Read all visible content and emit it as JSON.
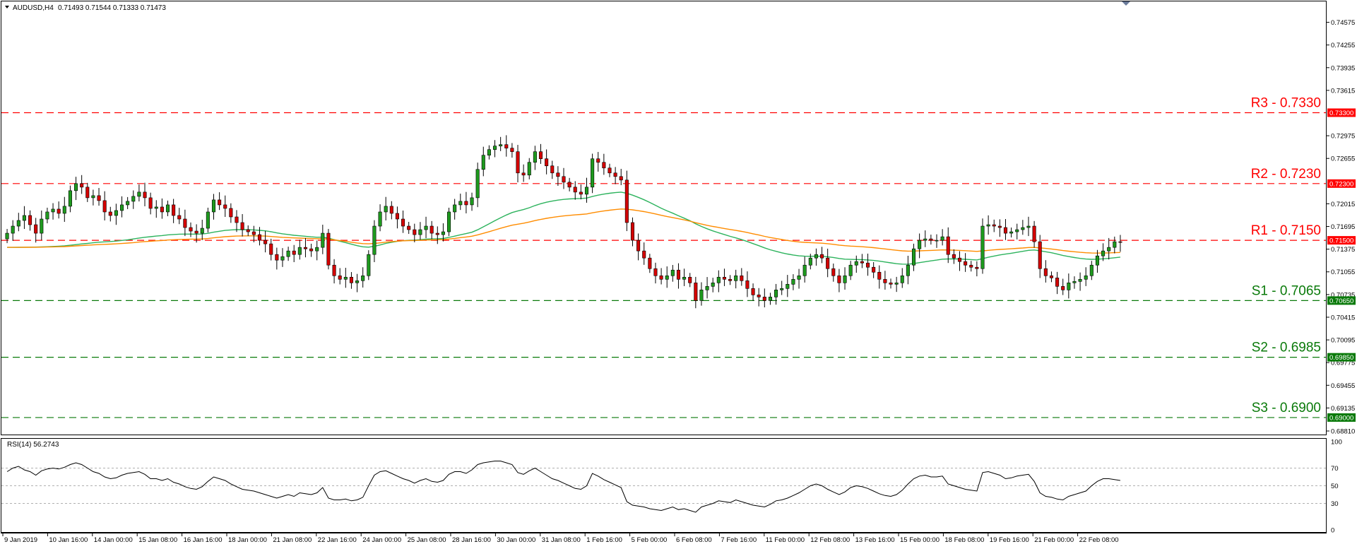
{
  "header": {
    "symbol": "AUDUSD,H4",
    "ohlc": "0.71493 0.71544 0.71333 0.71473"
  },
  "rsi_header": "RSI(14) 56.2743",
  "colors": {
    "bull": "#1e9a1e",
    "bear": "#d40000",
    "resistance": "#ff0000",
    "support": "#0a7a0a",
    "ma_fast": "#ff8c00",
    "ma_slow": "#2db35d",
    "rsi": "#000000"
  },
  "chart_data": {
    "type": "candlestick",
    "ylim": [
      0.6881,
      0.7479
    ],
    "price_ticks": [
      "0.74575",
      "0.74255",
      "0.73935",
      "0.73615",
      "0.73300",
      "0.72975",
      "0.72655",
      "0.72300",
      "0.72015",
      "0.71695",
      "0.71500",
      "0.71375",
      "0.71055",
      "0.70735",
      "0.70650",
      "0.70415",
      "0.70095",
      "0.69850",
      "0.69775",
      "0.69455",
      "0.69135",
      "0.69000",
      "0.68810"
    ],
    "time_labels": [
      "9 Jan 2019",
      "10 Jan 16:00",
      "14 Jan 00:00",
      "15 Jan 08:00",
      "16 Jan 16:00",
      "18 Jan 00:00",
      "21 Jan 08:00",
      "22 Jan 16:00",
      "24 Jan 00:00",
      "25 Jan 08:00",
      "28 Jan 16:00",
      "30 Jan 00:00",
      "31 Jan 08:00",
      "1 Feb 16:00",
      "5 Feb 00:00",
      "6 Feb 08:00",
      "7 Feb 16:00",
      "11 Feb 00:00",
      "12 Feb 08:00",
      "13 Feb 16:00",
      "15 Feb 00:00",
      "18 Feb 08:00",
      "19 Feb 16:00",
      "21 Feb 00:00",
      "22 Feb 08:00"
    ],
    "levels": [
      {
        "label": "R3 - 0.7330",
        "value": 0.733,
        "tag": "0.73300",
        "kind": "resistance"
      },
      {
        "label": "R2 - 0.7230",
        "value": 0.723,
        "tag": "0.72300",
        "kind": "resistance"
      },
      {
        "label": "R1 - 0.7150",
        "value": 0.715,
        "tag": "0.71500",
        "kind": "resistance"
      },
      {
        "label": "S1 - 0.7065",
        "value": 0.7065,
        "tag": "0.70650",
        "kind": "support"
      },
      {
        "label": "S2 - 0.6985",
        "value": 0.6985,
        "tag": "0.69850",
        "kind": "support"
      },
      {
        "label": "S3 - 0.6900",
        "value": 0.69,
        "tag": "0.69000",
        "kind": "support"
      }
    ],
    "closes": [
      0.716,
      0.717,
      0.7178,
      0.7185,
      0.7172,
      0.716,
      0.718,
      0.719,
      0.7194,
      0.7188,
      0.7198,
      0.722,
      0.723,
      0.7225,
      0.721,
      0.7213,
      0.7206,
      0.719,
      0.7185,
      0.7192,
      0.72,
      0.7205,
      0.7212,
      0.7218,
      0.721,
      0.7195,
      0.7197,
      0.719,
      0.72,
      0.7185,
      0.718,
      0.7168,
      0.7163,
      0.716,
      0.7167,
      0.719,
      0.7207,
      0.72,
      0.7195,
      0.7183,
      0.7175,
      0.7165,
      0.7162,
      0.7158,
      0.715,
      0.7145,
      0.713,
      0.7122,
      0.7127,
      0.7135,
      0.713,
      0.714,
      0.7138,
      0.7135,
      0.714,
      0.716,
      0.7115,
      0.71,
      0.7095,
      0.7098,
      0.709,
      0.7093,
      0.71,
      0.713,
      0.717,
      0.719,
      0.7198,
      0.7188,
      0.718,
      0.717,
      0.7165,
      0.7158,
      0.7165,
      0.717,
      0.716,
      0.7158,
      0.7162,
      0.719,
      0.72,
      0.7205,
      0.72,
      0.721,
      0.725,
      0.727,
      0.7278,
      0.7283,
      0.7285,
      0.728,
      0.7275,
      0.7245,
      0.7242,
      0.726,
      0.7275,
      0.7265,
      0.7255,
      0.7245,
      0.724,
      0.7232,
      0.7225,
      0.7218,
      0.7215,
      0.7225,
      0.7265,
      0.726,
      0.7252,
      0.7245,
      0.724,
      0.7235,
      0.7175,
      0.715,
      0.7135,
      0.7125,
      0.711,
      0.71,
      0.7095,
      0.71,
      0.7108,
      0.7095,
      0.7098,
      0.709,
      0.7065,
      0.708,
      0.7085,
      0.709,
      0.7098,
      0.7095,
      0.7093,
      0.71,
      0.7093,
      0.7082,
      0.7073,
      0.707,
      0.7065,
      0.707,
      0.708,
      0.7082,
      0.7088,
      0.7095,
      0.71,
      0.7115,
      0.7125,
      0.713,
      0.7125,
      0.711,
      0.71,
      0.709,
      0.71,
      0.7115,
      0.712,
      0.7118,
      0.7112,
      0.7105,
      0.7095,
      0.709,
      0.7088,
      0.709,
      0.71,
      0.7115,
      0.7138,
      0.715,
      0.7152,
      0.715,
      0.715,
      0.7155,
      0.713,
      0.7125,
      0.712,
      0.7115,
      0.7112,
      0.711,
      0.717,
      0.7172,
      0.717,
      0.7168,
      0.716,
      0.7162,
      0.7165,
      0.7168,
      0.717,
      0.7148,
      0.711,
      0.71,
      0.7097,
      0.7085,
      0.708,
      0.709,
      0.7092,
      0.7095,
      0.71,
      0.7115,
      0.7128,
      0.7135,
      0.714,
      0.7148,
      0.7147
    ]
  },
  "rsi_data": {
    "ylim": [
      0,
      100
    ],
    "ticks": [
      "100",
      "70",
      "50",
      "30",
      "0"
    ],
    "tick_values": [
      100,
      70,
      50,
      30,
      0
    ],
    "ref_levels": [
      70,
      50,
      30
    ],
    "values": [
      66,
      70,
      72,
      68,
      66,
      62,
      67,
      69,
      70,
      69,
      71,
      74,
      76,
      74,
      70,
      66,
      64,
      60,
      58,
      59,
      62,
      64,
      65,
      66,
      63,
      58,
      58,
      56,
      58,
      54,
      52,
      49,
      47,
      46,
      49,
      55,
      60,
      58,
      56,
      52,
      49,
      46,
      45,
      44,
      42,
      40,
      38,
      36,
      38,
      40,
      38,
      42,
      41,
      40,
      42,
      48,
      36,
      34,
      34,
      35,
      33,
      34,
      37,
      50,
      62,
      66,
      67,
      64,
      61,
      58,
      56,
      53,
      56,
      58,
      55,
      54,
      56,
      63,
      66,
      66,
      64,
      68,
      74,
      76,
      77,
      78,
      78,
      76,
      74,
      65,
      63,
      67,
      70,
      66,
      62,
      58,
      56,
      53,
      50,
      47,
      46,
      50,
      64,
      61,
      57,
      54,
      51,
      48,
      32,
      28,
      27,
      26,
      24,
      23,
      22,
      24,
      26,
      23,
      24,
      22,
      20,
      26,
      28,
      30,
      33,
      32,
      31,
      34,
      32,
      30,
      28,
      27,
      26,
      29,
      33,
      34,
      36,
      39,
      42,
      46,
      50,
      52,
      50,
      46,
      43,
      40,
      43,
      48,
      50,
      49,
      47,
      44,
      41,
      39,
      38,
      40,
      45,
      52,
      58,
      61,
      62,
      60,
      60,
      61,
      52,
      50,
      48,
      46,
      45,
      44,
      65,
      66,
      64,
      62,
      58,
      59,
      61,
      62,
      63,
      55,
      42,
      38,
      37,
      35,
      34,
      38,
      40,
      42,
      44,
      50,
      55,
      58,
      58,
      57,
      56
    ]
  }
}
